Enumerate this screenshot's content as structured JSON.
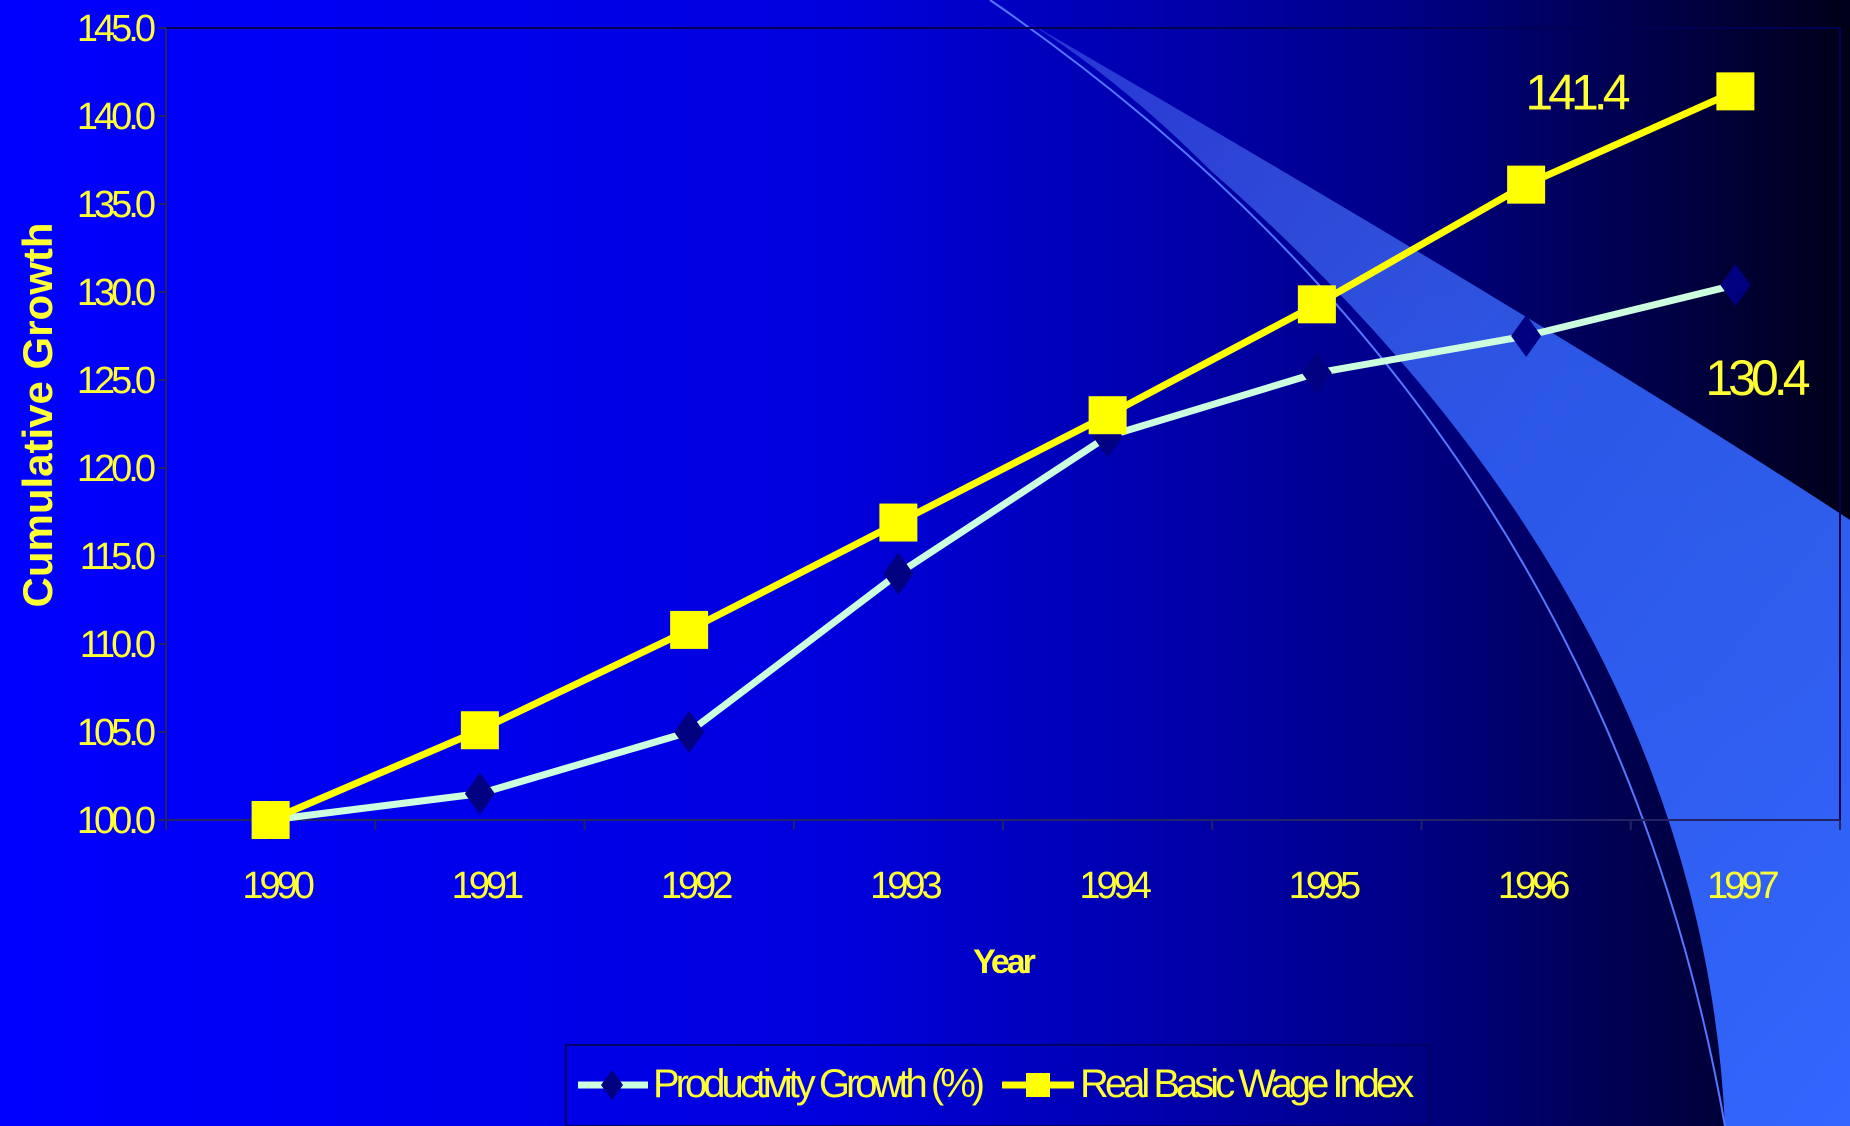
{
  "chart_data": {
    "type": "line",
    "title": "",
    "xlabel": "Year",
    "ylabel": "Cumulative Growth",
    "categories": [
      "1990",
      "1991",
      "1992",
      "1993",
      "1994",
      "1995",
      "1996",
      "1997"
    ],
    "ylim": [
      100,
      145
    ],
    "yticks": [
      "100.0",
      "105.0",
      "110.0",
      "115.0",
      "120.0",
      "125.0",
      "130.0",
      "135.0",
      "140.0",
      "145.0"
    ],
    "series": [
      {
        "name": "Productivity Growth (%)",
        "values": [
          100.0,
          101.5,
          105.0,
          114.0,
          121.8,
          125.4,
          127.5,
          130.4
        ],
        "line_color": "#ccffdd",
        "marker": "diamond",
        "marker_color": "#000080"
      },
      {
        "name": "Real Basic Wage Index",
        "values": [
          100.0,
          105.1,
          110.8,
          116.9,
          123.0,
          129.3,
          136.1,
          141.4
        ],
        "line_color": "#ffff00",
        "marker": "square",
        "marker_color": "#ffff00"
      }
    ],
    "data_labels": [
      {
        "series": 1,
        "index": 7,
        "text": "141.4"
      },
      {
        "series": 0,
        "index": 7,
        "text": "130.4"
      }
    ],
    "grid": false,
    "legend_position": "bottom",
    "colors": {
      "background_left": "#0000ff",
      "background_right": "#000022",
      "text": "#ffff33",
      "swoosh": "#3366ff"
    }
  }
}
